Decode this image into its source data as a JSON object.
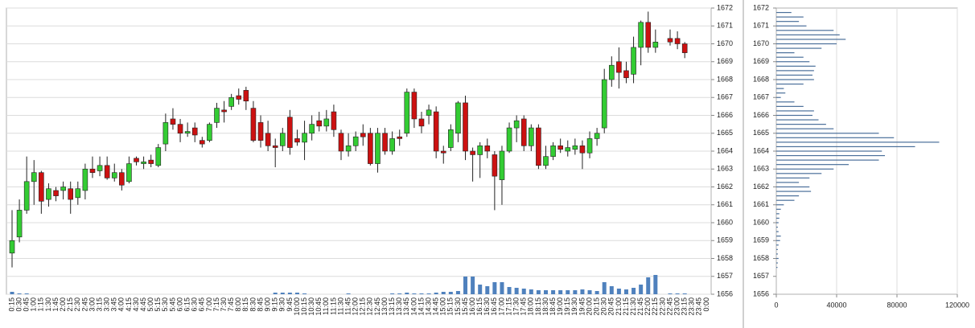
{
  "chart_data": [
    {
      "type": "candlestick",
      "categories": [
        "0:15",
        "0:30",
        "0:45",
        "1:00",
        "1:15",
        "1:30",
        "1:45",
        "2:00",
        "2:15",
        "2:30",
        "2:45",
        "3:00",
        "3:15",
        "3:30",
        "3:45",
        "4:00",
        "4:15",
        "4:30",
        "4:45",
        "5:00",
        "5:15",
        "5:30",
        "5:45",
        "6:00",
        "6:15",
        "6:30",
        "6:45",
        "7:00",
        "7:15",
        "7:30",
        "7:45",
        "8:00",
        "8:15",
        "8:30",
        "8:45",
        "9:00",
        "9:15",
        "9:30",
        "9:45",
        "10:00",
        "10:15",
        "10:30",
        "10:45",
        "11:00",
        "11:15",
        "11:30",
        "11:45",
        "12:00",
        "12:15",
        "12:30",
        "12:45",
        "13:00",
        "13:15",
        "13:30",
        "13:45",
        "14:00",
        "14:15",
        "14:30",
        "14:45",
        "15:00",
        "15:15",
        "15:30",
        "15:45",
        "16:00",
        "16:15",
        "16:30",
        "16:45",
        "17:00",
        "17:15",
        "17:30",
        "17:45",
        "18:00",
        "18:15",
        "18:30",
        "18:45",
        "19:00",
        "19:15",
        "19:30",
        "19:45",
        "20:00",
        "20:15",
        "20:30",
        "20:45",
        "21:00",
        "21:15",
        "21:30",
        "21:45",
        "22:00",
        "22:15",
        "22:30",
        "22:45",
        "23:00",
        "23:15",
        "23:30",
        "23:45",
        "0:00"
      ],
      "open": [
        1658.3,
        1659.2,
        1660.7,
        1662.3,
        1662.8,
        1661.3,
        1661.8,
        1661.8,
        1661.9,
        1661.4,
        1661.8,
        1663.0,
        1662.9,
        1663.2,
        1662.5,
        1662.8,
        1662.3,
        1663.6,
        1663.3,
        1663.5,
        1663.2,
        1664.4,
        1665.8,
        1665.5,
        1665.0,
        1665.3,
        1664.6,
        1664.6,
        1665.6,
        1666.3,
        1666.5,
        1667.1,
        1667.4,
        1666.4,
        1665.6,
        1665.0,
        1664.3,
        1664.3,
        1665.9,
        1664.7,
        1664.5,
        1665.0,
        1665.7,
        1665.4,
        1666.2,
        1665.0,
        1664.0,
        1664.3,
        1665.0,
        1665.0,
        1663.3,
        1665.0,
        1664.0,
        1664.8,
        1665.0,
        1667.3,
        1665.8,
        1666.0,
        1666.2,
        1664.0,
        1664.2,
        1665.0,
        1666.7,
        1664.0,
        1663.8,
        1664.3,
        1663.8,
        1662.4,
        1664.0,
        1665.3,
        1665.8,
        1664.3,
        1665.3,
        1663.2,
        1663.7,
        1664.3,
        1664.0,
        1664.1,
        1664.3,
        1663.9,
        1664.7,
        1665.3,
        1668.0,
        1669.0,
        1668.5,
        1668.3,
        1669.8,
        1671.2,
        1669.8,
        null,
        1670.3,
        1670.3,
        1670.0,
        null,
        null,
        null
      ],
      "high": [
        1660.7,
        1661.3,
        1663.7,
        1663.5,
        1662.9,
        1662.2,
        1662.0,
        1662.3,
        1662.3,
        1662.3,
        1663.3,
        1663.7,
        1663.7,
        1663.7,
        1663.3,
        1663.0,
        1663.7,
        1663.7,
        1663.7,
        1663.8,
        1664.4,
        1666.1,
        1666.4,
        1665.8,
        1665.6,
        1665.6,
        1664.8,
        1665.6,
        1666.7,
        1666.8,
        1667.2,
        1667.5,
        1667.6,
        1666.8,
        1666.0,
        1665.7,
        1664.7,
        1665.3,
        1666.3,
        1665.2,
        1665.7,
        1666.0,
        1666.2,
        1666.3,
        1666.6,
        1665.2,
        1665.0,
        1665.1,
        1665.5,
        1665.3,
        1665.3,
        1665.3,
        1665.1,
        1665.2,
        1667.5,
        1667.5,
        1666.2,
        1666.6,
        1666.5,
        1664.3,
        1665.5,
        1666.8,
        1667.1,
        1664.2,
        1664.5,
        1664.7,
        1664.0,
        1664.3,
        1665.6,
        1666.0,
        1666.0,
        1665.5,
        1665.5,
        1664.3,
        1664.5,
        1664.7,
        1664.6,
        1664.7,
        1664.6,
        1665.1,
        1665.3,
        1668.6,
        1669.3,
        1669.8,
        1669.0,
        1670.4,
        1671.3,
        1671.8,
        1670.8,
        null,
        1670.8,
        1670.7,
        1670.1,
        null,
        null,
        null
      ],
      "low": [
        1657.5,
        1658.9,
        1660.5,
        1661.0,
        1660.5,
        1660.9,
        1661.2,
        1661.3,
        1660.5,
        1661.0,
        1661.3,
        1662.5,
        1662.6,
        1662.4,
        1662.3,
        1661.8,
        1662.2,
        1663.2,
        1663.0,
        1663.1,
        1663.1,
        1664.0,
        1665.2,
        1664.5,
        1664.8,
        1664.5,
        1664.2,
        1664.5,
        1665.3,
        1665.6,
        1666.3,
        1666.6,
        1666.3,
        1664.5,
        1664.2,
        1664.0,
        1663.1,
        1664.0,
        1663.8,
        1664.3,
        1663.5,
        1664.6,
        1665.1,
        1665.1,
        1664.8,
        1663.5,
        1663.7,
        1664.0,
        1664.3,
        1663.2,
        1662.8,
        1663.8,
        1663.8,
        1664.3,
        1664.8,
        1665.3,
        1665.0,
        1665.5,
        1663.6,
        1663.3,
        1664.0,
        1664.5,
        1663.5,
        1662.3,
        1662.5,
        1663.6,
        1660.7,
        1661.0,
        1663.9,
        1664.5,
        1664.0,
        1664.0,
        1663.0,
        1663.0,
        1663.5,
        1663.9,
        1663.7,
        1663.8,
        1663.0,
        1663.6,
        1664.3,
        1665.0,
        1667.6,
        1667.5,
        1667.8,
        1667.8,
        1668.8,
        1669.5,
        1669.5,
        null,
        1669.9,
        1669.7,
        1669.2,
        null,
        null,
        null
      ],
      "close": [
        1659.0,
        1660.7,
        1662.3,
        1662.8,
        1661.2,
        1661.9,
        1661.5,
        1662.0,
        1661.3,
        1661.9,
        1663.0,
        1662.8,
        1663.2,
        1662.5,
        1662.8,
        1662.1,
        1663.3,
        1663.4,
        1663.4,
        1663.3,
        1664.2,
        1665.6,
        1665.5,
        1665.0,
        1665.1,
        1664.9,
        1664.4,
        1665.5,
        1666.4,
        1666.2,
        1667.0,
        1666.9,
        1666.8,
        1664.6,
        1664.6,
        1664.3,
        1664.2,
        1665.0,
        1664.2,
        1664.5,
        1665.0,
        1665.5,
        1665.4,
        1665.8,
        1665.2,
        1664.0,
        1664.3,
        1664.8,
        1664.8,
        1663.3,
        1665.0,
        1664.0,
        1664.7,
        1664.7,
        1667.3,
        1665.8,
        1665.4,
        1666.3,
        1664.0,
        1663.9,
        1665.2,
        1666.7,
        1664.0,
        1663.8,
        1664.3,
        1664.0,
        1662.6,
        1664.0,
        1665.3,
        1665.7,
        1664.3,
        1665.3,
        1663.2,
        1663.7,
        1664.3,
        1664.1,
        1664.2,
        1664.3,
        1663.9,
        1664.7,
        1665.0,
        1668.0,
        1668.8,
        1668.4,
        1668.1,
        1669.8,
        1671.2,
        1669.8,
        1670.1,
        null,
        1670.1,
        1670.0,
        1669.5,
        null,
        null,
        null
      ],
      "volume": [
        3,
        1,
        1,
        0,
        0,
        0,
        0,
        0,
        0,
        0,
        0,
        0,
        0,
        0,
        0,
        0,
        0,
        0,
        0,
        0,
        0,
        0,
        0,
        0,
        0,
        0,
        0,
        0,
        0,
        0,
        0,
        0,
        0,
        0,
        0,
        0,
        2,
        2,
        2,
        2,
        1,
        0,
        0,
        0,
        0,
        0,
        1,
        0,
        0,
        0,
        0,
        0,
        1,
        1,
        2,
        1,
        1,
        1,
        2,
        3,
        3,
        4,
        22,
        22,
        12,
        10,
        15,
        15,
        9,
        8,
        7,
        6,
        5,
        5,
        5,
        5,
        5,
        5,
        6,
        5,
        4,
        15,
        10,
        7,
        6,
        8,
        12,
        21,
        24,
        null,
        1,
        1,
        1,
        null,
        null,
        null
      ],
      "up_color": "#33cc33",
      "down_color": "#cc1111",
      "volume_color": "#4f81bd",
      "ylim": [
        1656,
        1672
      ],
      "yticks": [
        1656,
        1657,
        1658,
        1659,
        1660,
        1661,
        1662,
        1663,
        1664,
        1665,
        1666,
        1667,
        1668,
        1669,
        1670,
        1671,
        1672
      ],
      "grid": true
    },
    {
      "type": "bar",
      "orientation": "horizontal",
      "categories": [
        1671.75,
        1671.5,
        1671.25,
        1671,
        1670.75,
        1670.5,
        1670.25,
        1670,
        1669.75,
        1669.5,
        1669.25,
        1669,
        1668.75,
        1668.5,
        1668.25,
        1668,
        1667.75,
        1667.5,
        1667.25,
        1667,
        1666.75,
        1666.5,
        1666.25,
        1666,
        1665.75,
        1665.5,
        1665.25,
        1665,
        1664.75,
        1664.5,
        1664.25,
        1664,
        1663.75,
        1663.5,
        1663.25,
        1663,
        1662.75,
        1662.5,
        1662.25,
        1662,
        1661.75,
        1661.5,
        1661.25,
        1661,
        1660.75,
        1660.5,
        1660.25,
        1660,
        1659.75,
        1659.5,
        1659.25,
        1659,
        1658.75,
        1658.5,
        1658.25,
        1658,
        1657.75,
        1657.5
      ],
      "values": [
        10000,
        18000,
        15000,
        20000,
        38000,
        42000,
        46000,
        40000,
        30000,
        12000,
        18000,
        22000,
        26000,
        25000,
        24000,
        25000,
        18000,
        5000,
        6000,
        3000,
        12000,
        18000,
        25000,
        24000,
        28000,
        33000,
        38000,
        68000,
        78000,
        108000,
        92000,
        70000,
        72000,
        68000,
        48000,
        38000,
        30000,
        22000,
        15000,
        22000,
        23000,
        15000,
        12000,
        5000,
        3000,
        2000,
        2000,
        1500,
        1000,
        1500,
        3000,
        2500,
        1500,
        1000,
        1000,
        1500,
        1000,
        800
      ],
      "color": "#4a6f9a",
      "xlim": [
        0,
        120000
      ],
      "xticks": [
        0,
        40000,
        80000,
        120000
      ],
      "ylim": [
        1656,
        1672
      ],
      "yticks": [
        1656,
        1657,
        1658,
        1659,
        1660,
        1661,
        1662,
        1663,
        1664,
        1665,
        1666,
        1667,
        1668,
        1669,
        1670,
        1671,
        1672
      ],
      "grid": true
    }
  ]
}
